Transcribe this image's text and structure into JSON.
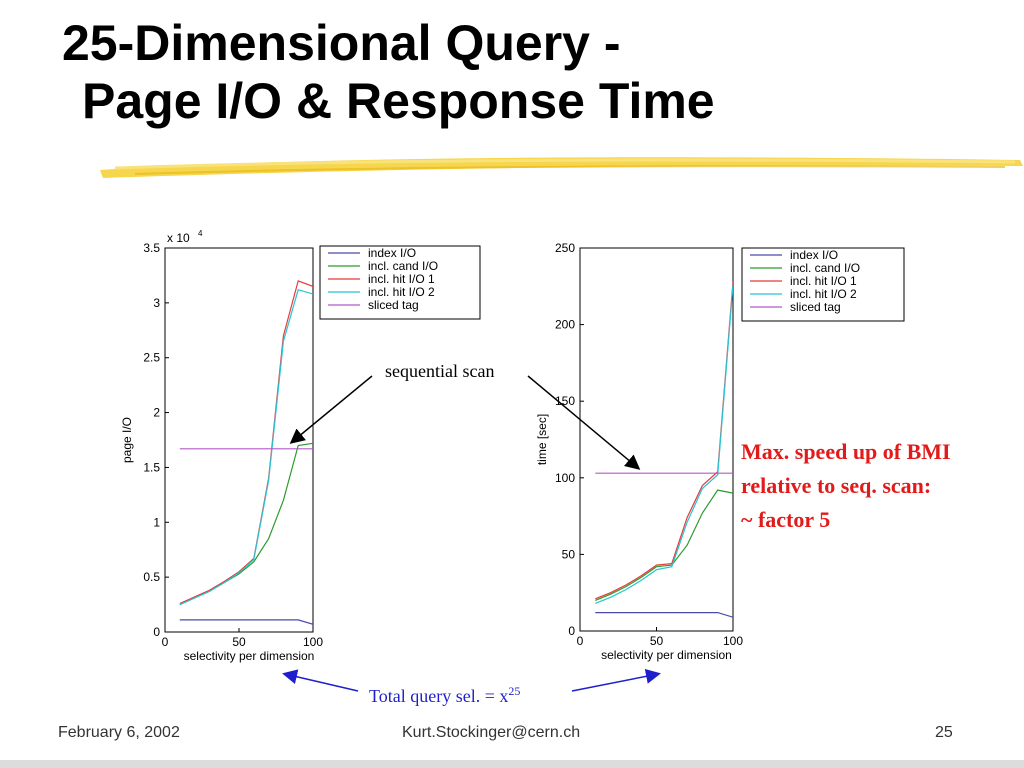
{
  "slide": {
    "title_line1": "25-Dimensional Query -",
    "title_line2": "Page I/O & Response Time",
    "annotation_sequential": "sequential scan",
    "annotation_speedup_line1": "Max. speed up of BMI",
    "annotation_speedup_line2": "relative to seq. scan:",
    "annotation_speedup_line3": "~ factor 5",
    "annotation_total_prefix": "Total query sel. = x",
    "annotation_total_exp": "25",
    "footer_date": "February 6, 2002",
    "footer_email": "Kurt.Stockinger@cern.ch",
    "footer_page": "25",
    "colors": {
      "title": "#000000",
      "brush": "#f5cf2e",
      "speedup": "#e21a1a",
      "total": "#1f1fcc"
    }
  },
  "chart_data": [
    {
      "type": "line",
      "xlabel": "selectivity per dimension",
      "ylabel": "page I/O",
      "exponent_label": "x 10",
      "exponent_power": "4",
      "xlim": [
        0,
        100
      ],
      "ylim": [
        0,
        3.5
      ],
      "xticks": [
        0,
        50,
        100
      ],
      "yticks": [
        0,
        0.5,
        1,
        1.5,
        2,
        2.5,
        3,
        3.5
      ],
      "ytick_labels": [
        "0",
        "0.5",
        "1",
        "1.5",
        "2",
        "2.5",
        "3",
        "3.5"
      ],
      "legend_position": "top-right",
      "series": [
        {
          "name": "index I/O",
          "color": "#4a4aa8",
          "x": [
            10,
            90,
            100
          ],
          "y": [
            0.11,
            0.11,
            0.07
          ]
        },
        {
          "name": "incl. cand I/O",
          "color": "#2e9a2e",
          "x": [
            10,
            20,
            30,
            40,
            50,
            60,
            70,
            80,
            90,
            100
          ],
          "y": [
            0.25,
            0.31,
            0.37,
            0.45,
            0.53,
            0.64,
            0.85,
            1.2,
            1.7,
            1.72
          ]
        },
        {
          "name": "incl. hit I/O 1",
          "color": "#e83a3a",
          "x": [
            10,
            20,
            30,
            40,
            50,
            60,
            70,
            80,
            90,
            100
          ],
          "y": [
            0.26,
            0.32,
            0.38,
            0.46,
            0.55,
            0.67,
            1.4,
            2.7,
            3.2,
            3.15
          ]
        },
        {
          "name": "incl. hit I/O 2",
          "color": "#27c4d4",
          "x": [
            10,
            20,
            30,
            40,
            50,
            60,
            70,
            80,
            90,
            100
          ],
          "y": [
            0.25,
            0.31,
            0.37,
            0.45,
            0.54,
            0.66,
            1.38,
            2.65,
            3.12,
            3.08
          ]
        },
        {
          "name": "sliced tag",
          "color": "#b45ac8",
          "x": [
            10,
            100
          ],
          "y": [
            1.67,
            1.67
          ]
        }
      ]
    },
    {
      "type": "line",
      "xlabel": "selectivity per dimension",
      "ylabel": "time [sec]",
      "xlim": [
        0,
        100
      ],
      "ylim": [
        0,
        250
      ],
      "xticks": [
        0,
        50,
        100
      ],
      "yticks": [
        0,
        50,
        100,
        150,
        200,
        250
      ],
      "ytick_labels": [
        "0",
        "50",
        "100",
        "150",
        "200",
        "250"
      ],
      "legend_position": "top-right",
      "series": [
        {
          "name": "index I/O",
          "color": "#4a4aa8",
          "x": [
            10,
            90,
            100
          ],
          "y": [
            12,
            12,
            9
          ]
        },
        {
          "name": "incl. cand I/O",
          "color": "#2e9a2e",
          "x": [
            10,
            20,
            30,
            40,
            50,
            60,
            70,
            80,
            90,
            100
          ],
          "y": [
            20,
            24,
            29,
            35,
            42,
            43,
            56,
            77,
            92,
            90
          ]
        },
        {
          "name": "incl. hit I/O 1",
          "color": "#e83a3a",
          "x": [
            10,
            20,
            30,
            40,
            50,
            60,
            70,
            80,
            90,
            100
          ],
          "y": [
            21,
            25,
            30,
            36,
            43,
            44,
            74,
            95,
            104,
            228
          ]
        },
        {
          "name": "incl. hit I/O 2",
          "color": "#27c4d4",
          "x": [
            10,
            20,
            30,
            40,
            50,
            60,
            70,
            80,
            90,
            100
          ],
          "y": [
            18,
            22,
            27,
            33,
            40,
            42,
            71,
            93,
            102,
            226
          ]
        },
        {
          "name": "sliced tag",
          "color": "#b45ac8",
          "x": [
            10,
            100
          ],
          "y": [
            103,
            103
          ]
        }
      ]
    }
  ]
}
